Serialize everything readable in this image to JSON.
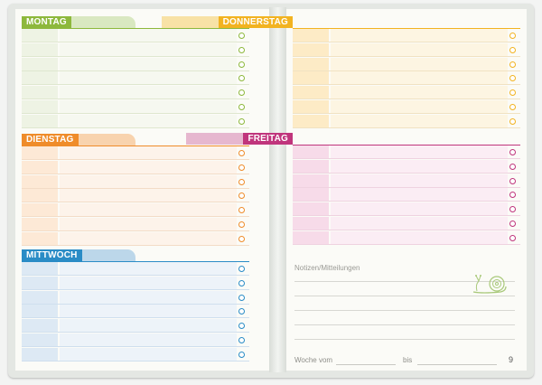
{
  "days": {
    "monday": {
      "label": "MONTAG"
    },
    "tuesday": {
      "label": "DIENSTAG"
    },
    "wednesday": {
      "label": "MITTWOCH"
    },
    "thursday": {
      "label": "DONNERSTAG"
    },
    "friday": {
      "label": "FREITAG"
    }
  },
  "colors": {
    "green": "#8db83c",
    "orange": "#ef8c2a",
    "blue": "#2a8cc6",
    "yellow": "#f2b321",
    "magenta": "#c0357c"
  },
  "notes": {
    "title": "Notizen/Mitteilungen",
    "week_from": "Woche vom",
    "to": "bis"
  },
  "page_number": "9",
  "icons": {
    "snail": "snail-icon"
  }
}
